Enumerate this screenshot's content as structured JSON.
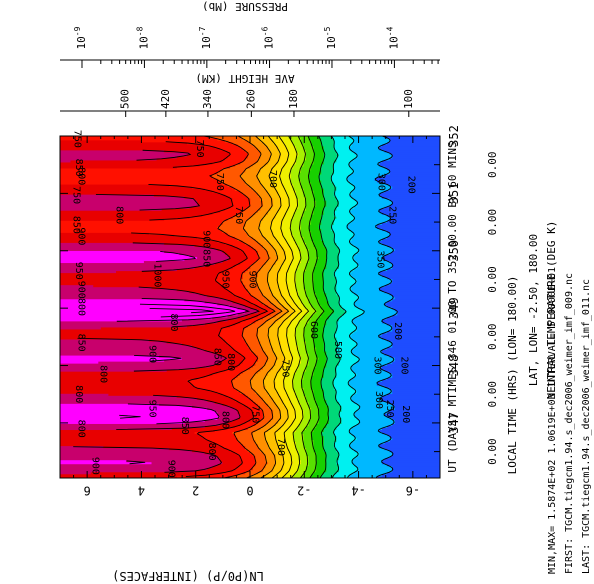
{
  "chart_data": {
    "type": "heatmap",
    "title": "NEUTRAL TEMPERATURE (DEG K)",
    "subtitle": "LAT, LON= -2.50, 180.00",
    "ylabel": "LN(P0/P) (INTERFACES)",
    "xlabel_primary": "UT (DAYS) MTIMES 346 01.00 TO 352 00.00 BY 60 MINS",
    "xlabel_secondary": "LOCAL TIME (HRS) (LON= 180.00)",
    "right_axis_height_label": "AVE HEIGHT (KM)",
    "right_axis_pressure_label": "PRESSURE (Mb)",
    "info": {
      "minmax": "MIN,MAX= 1.5874E+02 1.0619E+03 INTERVAL= 5.0000E+01",
      "first": "FIRST: TGCM.tiegcm1.94.s_dec2006_weimer_imf_009.nc",
      "last": "LAST: TGCM.tiegcm1.94.s_dec2006_weimer_imf_011.nc"
    },
    "ut_ticks": [
      "347",
      "348",
      "349",
      "350",
      "351",
      "352"
    ],
    "ut_tick_values": [
      347,
      348,
      349,
      350,
      351,
      352
    ],
    "lt_ticks": [
      "0.00",
      "0.00",
      "0.00",
      "0.00",
      "0.00",
      "0.00"
    ],
    "lt_tick_values": [
      346.5,
      347.5,
      348.5,
      349.5,
      350.5,
      351.5
    ],
    "ut_range": [
      346.04,
      352.0
    ],
    "lnp_ticks": [
      "-6",
      "-4",
      "-2",
      "0",
      "2",
      "4",
      "6"
    ],
    "lnp_tick_values": [
      -6,
      -4,
      -2,
      0,
      2,
      4,
      6
    ],
    "lnp_range": [
      -7,
      7
    ],
    "height_ticks": [
      "500",
      "420",
      "340",
      "260",
      "180",
      "100"
    ],
    "height_tick_values": [
      4.58,
      3.1,
      1.55,
      -0.05,
      -1.62,
      -5.85
    ],
    "pressure_ticks": [
      "10^-9",
      "10^-8",
      "10^-7",
      "10^-6",
      "10^-5",
      "10^-4"
    ],
    "pressure_tick_values": [
      6.19,
      3.89,
      1.59,
      -0.72,
      -3.02,
      -5.32
    ],
    "levels": [
      200,
      250,
      300,
      350,
      400,
      450,
      500,
      550,
      600,
      650,
      700,
      750,
      800,
      850,
      900,
      950,
      1000
    ],
    "colors": [
      "#1e4dff",
      "#00b8ff",
      "#00f0f0",
      "#00d878",
      "#18d000",
      "#58e000",
      "#a8f000",
      "#eef000",
      "#ffe000",
      "#ffc000",
      "#ff9000",
      "#ff5800",
      "#ff1000",
      "#e80000",
      "#c8006c",
      "#ff00ff"
    ],
    "temperature_columns": [
      {
        "ut": 346.04,
        "t_top": 800
      },
      {
        "ut": 346.17,
        "t_top": 875
      },
      {
        "ut": 346.3,
        "t_top": 905
      },
      {
        "ut": 346.43,
        "t_top": 895
      },
      {
        "ut": 346.56,
        "t_top": 855
      },
      {
        "ut": 346.7,
        "t_top": 830
      },
      {
        "ut": 346.83,
        "t_top": 820
      },
      {
        "ut": 346.96,
        "t_top": 895
      },
      {
        "ut": 347.09,
        "t_top": 955
      },
      {
        "ut": 347.22,
        "t_top": 945
      },
      {
        "ut": 347.35,
        "t_top": 895
      },
      {
        "ut": 347.48,
        "t_top": 855
      },
      {
        "ut": 347.61,
        "t_top": 820
      },
      {
        "ut": 347.74,
        "t_top": 815
      },
      {
        "ut": 347.87,
        "t_top": 840
      },
      {
        "ut": 348.0,
        "t_top": 890
      },
      {
        "ut": 348.13,
        "t_top": 915
      },
      {
        "ut": 348.26,
        "t_top": 880
      },
      {
        "ut": 348.39,
        "t_top": 860
      },
      {
        "ut": 348.52,
        "t_top": 845
      },
      {
        "ut": 348.65,
        "t_top": 850
      },
      {
        "ut": 348.78,
        "t_top": 905
      },
      {
        "ut": 348.9,
        "t_top": 1000
      },
      {
        "ut": 348.95,
        "t_top": 1055
      },
      {
        "ut": 349.0,
        "t_top": 1000
      },
      {
        "ut": 349.09,
        "t_top": 940
      },
      {
        "ut": 349.22,
        "t_top": 880
      },
      {
        "ut": 349.35,
        "t_top": 855
      },
      {
        "ut": 349.48,
        "t_top": 840
      },
      {
        "ut": 349.61,
        "t_top": 845
      },
      {
        "ut": 349.74,
        "t_top": 880
      },
      {
        "ut": 349.87,
        "t_top": 925
      },
      {
        "ut": 350.0,
        "t_top": 905
      },
      {
        "ut": 350.13,
        "t_top": 855
      },
      {
        "ut": 350.26,
        "t_top": 810
      },
      {
        "ut": 350.39,
        "t_top": 790
      },
      {
        "ut": 350.52,
        "t_top": 800
      },
      {
        "ut": 350.65,
        "t_top": 835
      },
      {
        "ut": 350.78,
        "t_top": 875
      },
      {
        "ut": 350.91,
        "t_top": 870
      },
      {
        "ut": 351.04,
        "t_top": 835
      },
      {
        "ut": 351.17,
        "t_top": 800
      },
      {
        "ut": 351.3,
        "t_top": 780
      },
      {
        "ut": 351.43,
        "t_top": 800
      },
      {
        "ut": 351.56,
        "t_top": 850
      },
      {
        "ut": 351.69,
        "t_top": 870
      },
      {
        "ut": 351.82,
        "t_top": 835
      },
      {
        "ut": 351.95,
        "t_top": 790
      },
      {
        "ut": 352.0,
        "t_top": 775
      }
    ],
    "contour_labels": [
      {
        "text": "750",
        "ut": 351.95,
        "lnp": 6.35
      },
      {
        "text": "750",
        "ut": 351.78,
        "lnp": 1.85
      },
      {
        "text": "850",
        "ut": 351.45,
        "lnp": 6.3
      },
      {
        "text": "800",
        "ut": 351.3,
        "lnp": 6.2
      },
      {
        "text": "750",
        "ut": 351.2,
        "lnp": 1.1
      },
      {
        "text": "700",
        "ut": 351.25,
        "lnp": -0.85
      },
      {
        "text": "300",
        "ut": 351.2,
        "lnp": -4.85
      },
      {
        "text": "200",
        "ut": 351.15,
        "lnp": -5.95
      },
      {
        "text": "750",
        "ut": 350.97,
        "lnp": 6.4
      },
      {
        "text": "800",
        "ut": 350.62,
        "lnp": 4.8
      },
      {
        "text": "750",
        "ut": 350.62,
        "lnp": 0.4
      },
      {
        "text": "250",
        "ut": 350.62,
        "lnp": -5.25
      },
      {
        "text": "850",
        "ut": 350.45,
        "lnp": 6.4
      },
      {
        "text": "900",
        "ut": 350.25,
        "lnp": 6.2
      },
      {
        "text": "900",
        "ut": 350.2,
        "lnp": 1.6
      },
      {
        "text": "850",
        "ut": 349.87,
        "lnp": 1.6
      },
      {
        "text": "350",
        "ut": 349.85,
        "lnp": -4.8
      },
      {
        "text": "950",
        "ut": 349.65,
        "lnp": 6.3
      },
      {
        "text": "1000",
        "ut": 349.57,
        "lnp": 3.4
      },
      {
        "text": "950",
        "ut": 349.5,
        "lnp": 0.9
      },
      {
        "text": "900",
        "ut": 349.5,
        "lnp": -0.1
      },
      {
        "text": "900",
        "ut": 349.32,
        "lnp": 6.2
      },
      {
        "text": "800",
        "ut": 349.02,
        "lnp": 6.2
      },
      {
        "text": "800",
        "ut": 348.75,
        "lnp": 2.8
      },
      {
        "text": "600",
        "ut": 348.62,
        "lnp": -2.35
      },
      {
        "text": "500",
        "ut": 348.27,
        "lnp": -3.25
      },
      {
        "text": "200",
        "ut": 348.6,
        "lnp": -5.45
      },
      {
        "text": "850",
        "ut": 348.4,
        "lnp": 6.2
      },
      {
        "text": "900",
        "ut": 348.2,
        "lnp": 3.6
      },
      {
        "text": "850",
        "ut": 348.15,
        "lnp": 1.2
      },
      {
        "text": "800",
        "ut": 348.06,
        "lnp": 0.7
      },
      {
        "text": "750",
        "ut": 347.95,
        "lnp": -1.3
      },
      {
        "text": "300",
        "ut": 348.0,
        "lnp": -4.7
      },
      {
        "text": "200",
        "ut": 348.0,
        "lnp": -5.7
      },
      {
        "text": "800",
        "ut": 347.85,
        "lnp": 5.4
      },
      {
        "text": "800",
        "ut": 347.5,
        "lnp": 6.3
      },
      {
        "text": "950",
        "ut": 347.25,
        "lnp": 3.6
      },
      {
        "text": "800",
        "ut": 347.05,
        "lnp": 0.9
      },
      {
        "text": "850",
        "ut": 346.95,
        "lnp": 2.4
      },
      {
        "text": "300",
        "ut": 347.4,
        "lnp": -4.75
      },
      {
        "text": "250",
        "ut": 347.25,
        "lnp": -5.15
      },
      {
        "text": "200",
        "ut": 347.15,
        "lnp": -5.75
      },
      {
        "text": "750",
        "ut": 347.15,
        "lnp": -0.2
      },
      {
        "text": "800",
        "ut": 346.9,
        "lnp": 6.2
      },
      {
        "text": "800",
        "ut": 346.5,
        "lnp": 1.4
      },
      {
        "text": "700",
        "ut": 346.58,
        "lnp": -1.15
      },
      {
        "text": "900",
        "ut": 346.25,
        "lnp": 5.7
      },
      {
        "text": "900",
        "ut": 346.2,
        "lnp": 2.9
      }
    ]
  }
}
